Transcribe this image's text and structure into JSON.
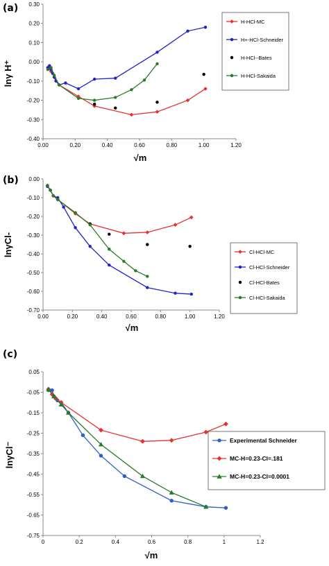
{
  "chart_data": [
    {
      "type": "line",
      "panel_label": "(a)",
      "ylabel": "lnγ H⁺",
      "xlabel": "√m",
      "xlim": [
        0,
        1.2
      ],
      "ylim": [
        -0.4,
        0.3
      ],
      "xticks": [
        "0.00",
        "0.20",
        "0.40",
        "0.60",
        "0.80",
        "1.00",
        "1.20"
      ],
      "yticks": [
        "0.30",
        "0.20",
        "0.10",
        "0.00",
        "-0.10",
        "-0.20",
        "-0.30",
        "-0.40"
      ],
      "legend_position": "top-right",
      "series": [
        {
          "name": "H-HCl-MC",
          "color": "#e8312f",
          "marker": "diamond",
          "line": true,
          "x": [
            0.03,
            0.05,
            0.07,
            0.1,
            0.22,
            0.32,
            0.55,
            0.71,
            0.9,
            1.01
          ],
          "y": [
            -0.03,
            -0.05,
            -0.08,
            -0.12,
            -0.18,
            -0.23,
            -0.275,
            -0.26,
            -0.2,
            -0.14
          ]
        },
        {
          "name": "H+-HCl-Schneider",
          "color": "#2222cc",
          "marker": "circle",
          "line": true,
          "x": [
            0.03,
            0.04,
            0.05,
            0.06,
            0.07,
            0.08,
            0.1,
            0.14,
            0.22,
            0.32,
            0.45,
            0.71,
            0.9,
            1.01
          ],
          "y": [
            -0.03,
            -0.02,
            -0.04,
            -0.06,
            -0.08,
            -0.1,
            -0.12,
            -0.11,
            -0.14,
            -0.09,
            -0.085,
            0.05,
            0.16,
            0.18
          ]
        },
        {
          "name": "H-HCl--Bates",
          "color": "#000000",
          "marker": "circle",
          "line": false,
          "x": [
            0.32,
            0.45,
            0.71,
            1.0
          ],
          "y": [
            -0.22,
            -0.24,
            -0.21,
            -0.065
          ]
        },
        {
          "name": "H-HCl-Sakaida",
          "color": "#2a7a2a",
          "marker": "circle",
          "line": true,
          "x": [
            0.03,
            0.05,
            0.07,
            0.1,
            0.22,
            0.32,
            0.45,
            0.55,
            0.63,
            0.71
          ],
          "y": [
            -0.04,
            -0.03,
            -0.07,
            -0.12,
            -0.19,
            -0.2,
            -0.185,
            -0.145,
            -0.095,
            -0.01
          ]
        }
      ]
    },
    {
      "type": "line",
      "panel_label": "(b)",
      "ylabel": "lnγCl-",
      "xlabel": "√m",
      "xlim": [
        0,
        1.2
      ],
      "ylim": [
        -0.7,
        0
      ],
      "xticks": [
        "0.00",
        "0.20",
        "0.40",
        "0.60",
        "0.80",
        "1.00",
        "1.20"
      ],
      "yticks": [
        "0.00",
        "-0.10",
        "-0.20",
        "-0.30",
        "-0.40",
        "-0.50",
        "-0.60",
        "-0.70"
      ],
      "legend_position": "right",
      "series": [
        {
          "name": "Cl-HCl-MC",
          "color": "#e8312f",
          "marker": "diamond",
          "line": true,
          "x": [
            0.03,
            0.05,
            0.07,
            0.1,
            0.22,
            0.32,
            0.55,
            0.71,
            0.9,
            1.01
          ],
          "y": [
            -0.035,
            -0.06,
            -0.09,
            -0.11,
            -0.185,
            -0.24,
            -0.29,
            -0.285,
            -0.245,
            -0.205
          ]
        },
        {
          "name": "Cl-HCl-Schneider",
          "color": "#2222cc",
          "marker": "circle",
          "line": true,
          "x": [
            0.03,
            0.05,
            0.07,
            0.1,
            0.14,
            0.22,
            0.32,
            0.45,
            0.71,
            0.9,
            1.01
          ],
          "y": [
            -0.04,
            -0.06,
            -0.09,
            -0.1,
            -0.15,
            -0.26,
            -0.36,
            -0.46,
            -0.58,
            -0.61,
            -0.615
          ]
        },
        {
          "name": "Cl-HCl-Bates",
          "color": "#000000",
          "marker": "circle",
          "line": false,
          "x": [
            0.32,
            0.45,
            0.71,
            1.0
          ],
          "y": [
            -0.24,
            -0.295,
            -0.35,
            -0.36
          ]
        },
        {
          "name": "Cl-HCl-Sakaida",
          "color": "#2a7a2a",
          "marker": "circle",
          "line": true,
          "x": [
            0.03,
            0.05,
            0.07,
            0.1,
            0.22,
            0.32,
            0.45,
            0.55,
            0.63,
            0.71
          ],
          "y": [
            -0.035,
            -0.06,
            -0.09,
            -0.11,
            -0.18,
            -0.245,
            -0.375,
            -0.44,
            -0.49,
            -0.52
          ]
        }
      ]
    },
    {
      "type": "line",
      "panel_label": "(c)",
      "ylabel": "lnγCl⁻",
      "xlabel": "√m",
      "xlim": [
        0,
        1.2
      ],
      "ylim": [
        -0.75,
        0.05
      ],
      "xticks": [
        "0",
        "0.2",
        "0.4",
        "0.6",
        "0.8",
        "1",
        "1.2"
      ],
      "yticks": [
        "0.05",
        "-0.05",
        "-0.15",
        "-0.25",
        "-0.35",
        "-0.45",
        "-0.55",
        "-0.65",
        "-0.75"
      ],
      "legend_position": "right",
      "series": [
        {
          "name": "Experimental Schneider",
          "color": "#2e5fc8",
          "marker": "circle",
          "line": true,
          "x": [
            0.03,
            0.05,
            0.06,
            0.07,
            0.08,
            0.1,
            0.14,
            0.22,
            0.32,
            0.45,
            0.71,
            0.9,
            1.01
          ],
          "y": [
            -0.04,
            -0.04,
            -0.07,
            -0.08,
            -0.09,
            -0.1,
            -0.15,
            -0.26,
            -0.36,
            -0.46,
            -0.58,
            -0.61,
            -0.615
          ]
        },
        {
          "name": "MC-H=0.23-Cl=.181",
          "color": "#e8312f",
          "marker": "diamond",
          "line": true,
          "x": [
            0.03,
            0.05,
            0.07,
            0.1,
            0.32,
            0.55,
            0.71,
            0.9,
            1.01
          ],
          "y": [
            -0.035,
            -0.06,
            -0.08,
            -0.1,
            -0.235,
            -0.29,
            -0.285,
            -0.245,
            -0.205
          ]
        },
        {
          "name": "MC-H=0.23-Cl=0.0001",
          "color": "#2a7a2a",
          "marker": "triangle",
          "line": true,
          "x": [
            0.03,
            0.06,
            0.1,
            0.14,
            0.32,
            0.55,
            0.71,
            0.9
          ],
          "y": [
            -0.035,
            -0.07,
            -0.11,
            -0.15,
            -0.305,
            -0.46,
            -0.54,
            -0.61
          ]
        }
      ]
    }
  ]
}
